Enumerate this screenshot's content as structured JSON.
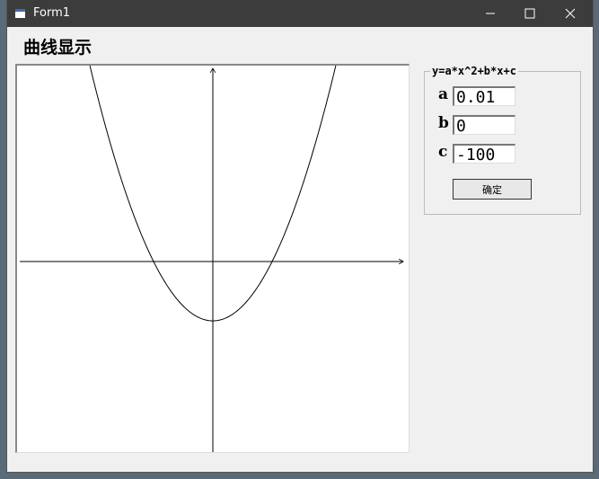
{
  "window": {
    "title": "Form1"
  },
  "heading": "曲线显示",
  "group": {
    "title": "y=a*x^2+b*x+c",
    "fields": [
      {
        "label": "a",
        "value": "0.01"
      },
      {
        "label": "b",
        "value": "0"
      },
      {
        "label": "c",
        "value": "-100"
      }
    ],
    "button": "确定"
  }
}
